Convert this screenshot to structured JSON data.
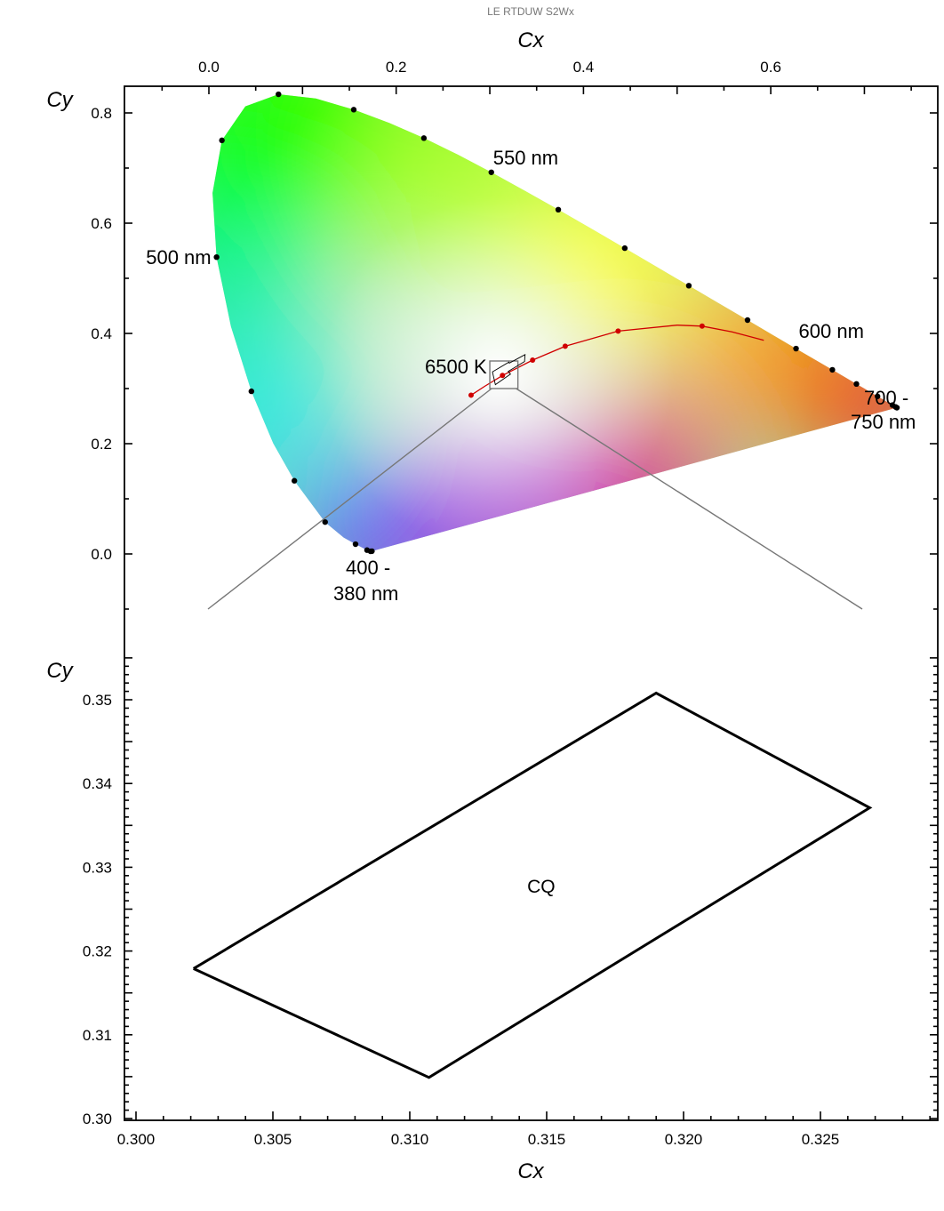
{
  "header": {
    "title": "LE RTDUW S2Wx"
  },
  "chart_data": [
    {
      "type": "scatter",
      "subtype": "cie-1931-chromaticity",
      "xlabel": "Cx",
      "ylabel": "Cy",
      "xlim": [
        -0.09,
        0.78
      ],
      "ylim": [
        -0.09,
        0.85
      ],
      "x_axis_position": "top",
      "x_ticks": [
        {
          "value": 0.0,
          "label": "0.0"
        },
        {
          "value": 0.2,
          "label": "0.2"
        },
        {
          "value": 0.4,
          "label": "0.4"
        },
        {
          "value": 0.6,
          "label": "0.6"
        }
      ],
      "y_ticks": [
        {
          "value": 0.0,
          "label": "0.0"
        },
        {
          "value": 0.2,
          "label": "0.2"
        },
        {
          "value": 0.4,
          "label": "0.4"
        },
        {
          "value": 0.6,
          "label": "0.6"
        },
        {
          "value": 0.8,
          "label": "0.8"
        }
      ],
      "spectral_locus": [
        [
          0.1741,
          0.005
        ],
        [
          0.1733,
          0.0048
        ],
        [
          0.1726,
          0.0048
        ],
        [
          0.1714,
          0.0051
        ],
        [
          0.1689,
          0.0069
        ],
        [
          0.1644,
          0.0109
        ],
        [
          0.1566,
          0.0177
        ],
        [
          0.144,
          0.0297
        ],
        [
          0.1241,
          0.0578
        ],
        [
          0.0913,
          0.1327
        ],
        [
          0.0687,
          0.2007
        ],
        [
          0.0454,
          0.295
        ],
        [
          0.0235,
          0.4127
        ],
        [
          0.0082,
          0.5384
        ],
        [
          0.0039,
          0.6548
        ],
        [
          0.0139,
          0.7502
        ],
        [
          0.0389,
          0.812
        ],
        [
          0.0743,
          0.8338
        ],
        [
          0.1142,
          0.8262
        ],
        [
          0.1547,
          0.8059
        ],
        [
          0.1929,
          0.7816
        ],
        [
          0.2296,
          0.7543
        ],
        [
          0.2658,
          0.7243
        ],
        [
          0.3016,
          0.6923
        ],
        [
          0.3373,
          0.6589
        ],
        [
          0.3731,
          0.6245
        ],
        [
          0.4087,
          0.5896
        ],
        [
          0.4441,
          0.5547
        ],
        [
          0.4788,
          0.5202
        ],
        [
          0.5125,
          0.4866
        ],
        [
          0.5448,
          0.4544
        ],
        [
          0.5752,
          0.4242
        ],
        [
          0.6029,
          0.3965
        ],
        [
          0.627,
          0.3725
        ],
        [
          0.6482,
          0.3514
        ],
        [
          0.6658,
          0.334
        ],
        [
          0.6801,
          0.3197
        ],
        [
          0.6915,
          0.3083
        ],
        [
          0.7006,
          0.2993
        ],
        [
          0.7079,
          0.292
        ],
        [
          0.714,
          0.2859
        ],
        [
          0.719,
          0.2809
        ],
        [
          0.723,
          0.277
        ],
        [
          0.726,
          0.274
        ],
        [
          0.7283,
          0.2717
        ],
        [
          0.73,
          0.27
        ],
        [
          0.7311,
          0.2689
        ],
        [
          0.732,
          0.268
        ],
        [
          0.7327,
          0.2673
        ],
        [
          0.7334,
          0.2666
        ],
        [
          0.734,
          0.266
        ],
        [
          0.7344,
          0.2656
        ],
        [
          0.7346,
          0.2654
        ],
        [
          0.7347,
          0.2653
        ]
      ],
      "locus_markers": [
        [
          0.1741,
          0.005
        ],
        [
          0.1726,
          0.0048
        ],
        [
          0.1689,
          0.0069
        ],
        [
          0.1566,
          0.0177
        ],
        [
          0.1241,
          0.0578
        ],
        [
          0.0913,
          0.1327
        ],
        [
          0.0454,
          0.295
        ],
        [
          0.0082,
          0.5384
        ],
        [
          0.0139,
          0.7502
        ],
        [
          0.0743,
          0.8338
        ],
        [
          0.1547,
          0.8059
        ],
        [
          0.2296,
          0.7543
        ],
        [
          0.3016,
          0.6923
        ],
        [
          0.3731,
          0.6245
        ],
        [
          0.4441,
          0.5547
        ],
        [
          0.5125,
          0.4866
        ],
        [
          0.5752,
          0.4242
        ],
        [
          0.627,
          0.3725
        ],
        [
          0.6658,
          0.334
        ],
        [
          0.6915,
          0.3083
        ],
        [
          0.714,
          0.2859
        ],
        [
          0.73,
          0.27
        ],
        [
          0.7334,
          0.2666
        ],
        [
          0.7347,
          0.2653
        ]
      ],
      "planckian_locus": [
        [
          0.28,
          0.288
        ],
        [
          0.2952,
          0.3048
        ],
        [
          0.3135,
          0.3237
        ],
        [
          0.3457,
          0.3516
        ],
        [
          0.3805,
          0.3768
        ],
        [
          0.437,
          0.4042
        ],
        [
          0.5,
          0.415
        ],
        [
          0.5267,
          0.4133
        ],
        [
          0.5586,
          0.4029
        ],
        [
          0.5926,
          0.3876
        ]
      ],
      "planckian_markers": [
        [
          0.28,
          0.288
        ],
        [
          0.3135,
          0.3237
        ],
        [
          0.3457,
          0.3516
        ],
        [
          0.3805,
          0.3768
        ],
        [
          0.437,
          0.4042
        ],
        [
          0.5267,
          0.4133
        ]
      ],
      "wavelength_labels": [
        {
          "text": "550 nm",
          "x": 0.3016,
          "y": 0.6923
        },
        {
          "text": "500 nm",
          "x": 0.0082,
          "y": 0.5384
        },
        {
          "text": "600 nm",
          "x": 0.627,
          "y": 0.3725
        },
        {
          "text": "700 -",
          "x": 0.73,
          "y": 0.27
        },
        {
          "text": "750 nm",
          "x": 0.73,
          "y": 0.27
        },
        {
          "text": "400 -",
          "x": 0.1741,
          "y": 0.005
        },
        {
          "text": "380 nm",
          "x": 0.1741,
          "y": 0.005
        }
      ],
      "white_point": {
        "label": "6500 K",
        "x": 0.3127,
        "y": 0.329
      },
      "zoom_box": {
        "x": [
          0.3,
          0.33
        ],
        "y": [
          0.3,
          0.35
        ]
      },
      "cq_region": [
        [
          0.3028,
          0.3304
        ],
        [
          0.3205,
          0.3481
        ],
        [
          0.3207,
          0.3462
        ],
        [
          0.3376,
          0.3616
        ],
        [
          0.3371,
          0.349
        ],
        [
          0.3196,
          0.3312
        ],
        [
          0.3221,
          0.3261
        ],
        [
          0.3059,
          0.3071
        ]
      ]
    },
    {
      "type": "line",
      "subtype": "zoomed-chromaticity-region",
      "xlabel": "Cx",
      "ylabel": "Cy",
      "xlim": [
        0.2995,
        0.3295
      ],
      "ylim": [
        0.3,
        0.357
      ],
      "x_ticks": [
        {
          "value": 0.3,
          "label": "0.300"
        },
        {
          "value": 0.305,
          "label": "0.305"
        },
        {
          "value": 0.31,
          "label": "0.310"
        },
        {
          "value": 0.315,
          "label": "0.315"
        },
        {
          "value": 0.32,
          "label": "0.320"
        },
        {
          "value": 0.325,
          "label": "0.325"
        }
      ],
      "y_ticks": [
        {
          "value": 0.3,
          "label": "0.30"
        },
        {
          "value": 0.31,
          "label": "0.31"
        },
        {
          "value": 0.32,
          "label": "0.32"
        },
        {
          "value": 0.33,
          "label": "0.33"
        },
        {
          "value": 0.34,
          "label": "0.34"
        },
        {
          "value": 0.35,
          "label": "0.35"
        }
      ],
      "series": [
        {
          "name": "CQ",
          "x": [
            0.3021,
            0.319,
            0.3268,
            0.3107,
            0.3021
          ],
          "y": [
            0.3179,
            0.3508,
            0.3371,
            0.3049,
            0.3179
          ]
        }
      ],
      "region_label": {
        "text": "CQ",
        "x": 0.3148,
        "y": 0.3278
      }
    }
  ]
}
